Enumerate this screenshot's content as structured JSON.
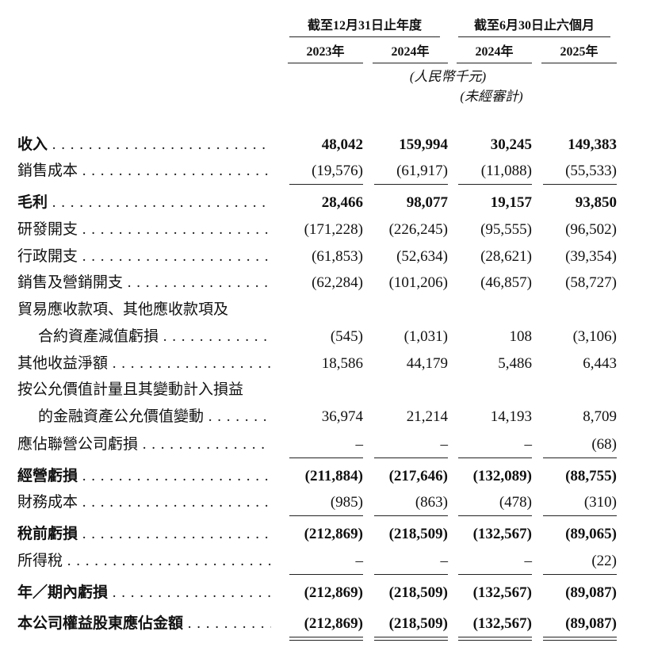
{
  "header": {
    "period_groups": [
      "截至12月31日止年度",
      "截至6月30日止六個月"
    ],
    "years": [
      "2023年",
      "2024年",
      "2024年",
      "2025年"
    ],
    "unit": "(人民幣千元)",
    "audit_note": "(未經審計)"
  },
  "rows": [
    {
      "label": [
        "收入"
      ],
      "values": [
        "48,042",
        "159,994",
        "30,245",
        "149,383"
      ]
    },
    {
      "label": [
        "銷售成本"
      ],
      "values": [
        "(19,576)",
        "(61,917)",
        "(11,088)",
        "(55,533)"
      ]
    },
    {
      "label": [
        "毛利"
      ],
      "values": [
        "28,466",
        "98,077",
        "19,157",
        "93,850"
      ]
    },
    {
      "label": [
        "研發開支"
      ],
      "values": [
        "(171,228)",
        "(226,245)",
        "(95,555)",
        "(96,502)"
      ]
    },
    {
      "label": [
        "行政開支"
      ],
      "values": [
        "(61,853)",
        "(52,634)",
        "(28,621)",
        "(39,354)"
      ]
    },
    {
      "label": [
        "銷售及營銷開支"
      ],
      "values": [
        "(62,284)",
        "(101,206)",
        "(46,857)",
        "(58,727)"
      ]
    },
    {
      "label": [
        "貿易應收款項、其他應收款項及",
        "合約資產減值虧損"
      ],
      "values": [
        "(545)",
        "(1,031)",
        "108",
        "(3,106)"
      ]
    },
    {
      "label": [
        "其他收益淨額"
      ],
      "values": [
        "18,586",
        "44,179",
        "5,486",
        "6,443"
      ]
    },
    {
      "label": [
        "按公允價值計量且其變動計入損益",
        "的金融資產公允價值變動"
      ],
      "values": [
        "36,974",
        "21,214",
        "14,193",
        "8,709"
      ]
    },
    {
      "label": [
        "應佔聯營公司虧損"
      ],
      "values": [
        "–",
        "–",
        "–",
        "(68)"
      ]
    },
    {
      "label": [
        "經營虧損"
      ],
      "values": [
        "(211,884)",
        "(217,646)",
        "(132,089)",
        "(88,755)"
      ]
    },
    {
      "label": [
        "財務成本"
      ],
      "values": [
        "(985)",
        "(863)",
        "(478)",
        "(310)"
      ]
    },
    {
      "label": [
        "稅前虧損"
      ],
      "values": [
        "(212,869)",
        "(218,509)",
        "(132,567)",
        "(89,065)"
      ]
    },
    {
      "label": [
        "所得稅"
      ],
      "values": [
        "–",
        "–",
        "–",
        "(22)"
      ]
    },
    {
      "label": [
        "年／期內虧損"
      ],
      "values": [
        "(212,869)",
        "(218,509)",
        "(132,567)",
        "(89,087)"
      ]
    },
    {
      "label": [
        "本公司權益股東應佔金額"
      ],
      "values": [
        "(212,869)",
        "(218,509)",
        "(132,567)",
        "(89,087)"
      ]
    }
  ]
}
